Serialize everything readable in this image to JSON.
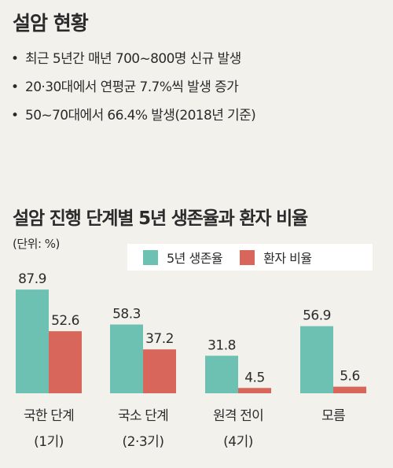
{
  "header": {
    "title": "설암 현황",
    "bullets": [
      "최근 5년간 매년 700~800명 신규 발생",
      "20·30대에서 연평균 7.7%씩 발생 증가",
      "50~70대에서 66.4% 발생(2018년 기준)"
    ],
    "bullet_mark": "•"
  },
  "chart_data": {
    "type": "bar",
    "title": "설암 진행 단계별 5년 생존율과 환자 비율",
    "unit_label": "(단위: %)",
    "categories": [
      {
        "line1": "국한 단계",
        "line2": "(1기)"
      },
      {
        "line1": "국소 단계",
        "line2": "(2·3기)"
      },
      {
        "line1": "원격 전이",
        "line2": "(4기)"
      },
      {
        "line1": "모름",
        "line2": ""
      }
    ],
    "series": [
      {
        "name": "5년 생존율",
        "color": "#6cc1b2",
        "values": [
          87.9,
          58.3,
          31.8,
          56.9
        ]
      },
      {
        "name": "환자 비율",
        "color": "#d9665b",
        "values": [
          52.6,
          37.2,
          4.5,
          5.6
        ]
      }
    ],
    "value_labels": [
      [
        "87.9",
        "58.3",
        "31.8",
        "56.9"
      ],
      [
        "52.6",
        "37.2",
        "4.5",
        "5.6"
      ]
    ],
    "ylim": [
      0,
      100
    ],
    "legend": "top-right",
    "grid": false
  }
}
